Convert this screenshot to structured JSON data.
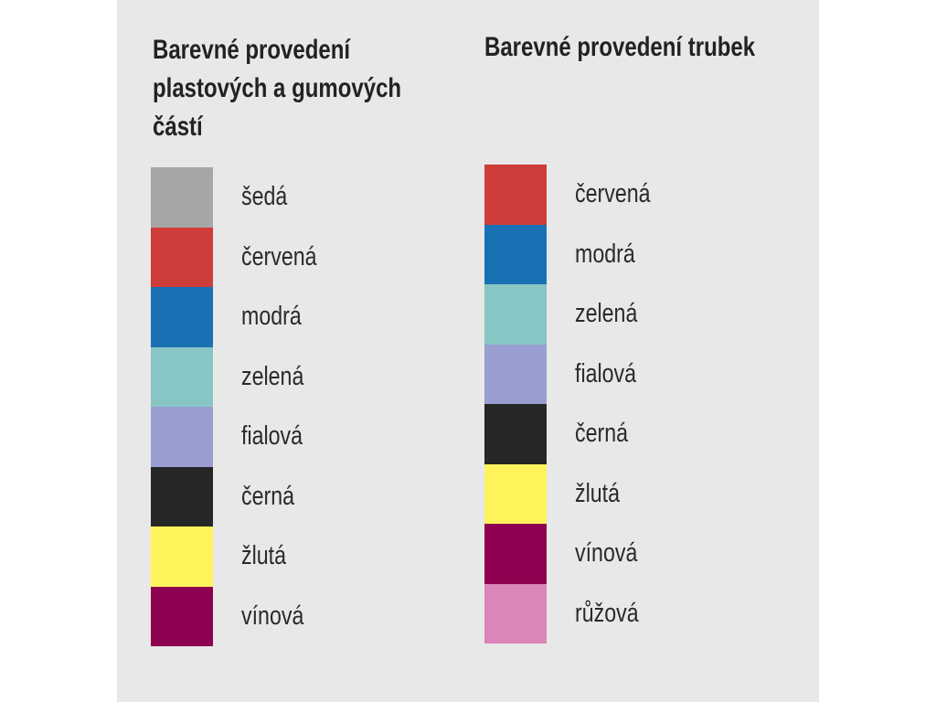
{
  "plastic_parts": {
    "title_lines": [
      "Barevné provedení",
      "plastových a gumových",
      "částí"
    ],
    "colors": [
      {
        "label": "šedá",
        "color": "#a6a6a6"
      },
      {
        "label": "červená",
        "color": "#cf3d3a"
      },
      {
        "label": "modrá",
        "color": "#1971b4"
      },
      {
        "label": "zelená",
        "color": "#88c6c5"
      },
      {
        "label": "fialová",
        "color": "#989ecf"
      },
      {
        "label": "černá",
        "color": "#262626"
      },
      {
        "label": "žlutá",
        "color": "#fff35c"
      },
      {
        "label": "vínová",
        "color": "#8e0050"
      }
    ]
  },
  "tubes": {
    "title_lines": [
      "Barevné provedení trubek"
    ],
    "colors": [
      {
        "label": "červená",
        "color": "#cf3d3a"
      },
      {
        "label": "modrá",
        "color": "#1971b4"
      },
      {
        "label": "zelená",
        "color": "#88c6c5"
      },
      {
        "label": "fialová",
        "color": "#989ecf"
      },
      {
        "label": "černá",
        "color": "#262626"
      },
      {
        "label": "žlutá",
        "color": "#fff35c"
      },
      {
        "label": "vínová",
        "color": "#8e0050"
      },
      {
        "label": "růžová",
        "color": "#db85b8"
      }
    ]
  }
}
